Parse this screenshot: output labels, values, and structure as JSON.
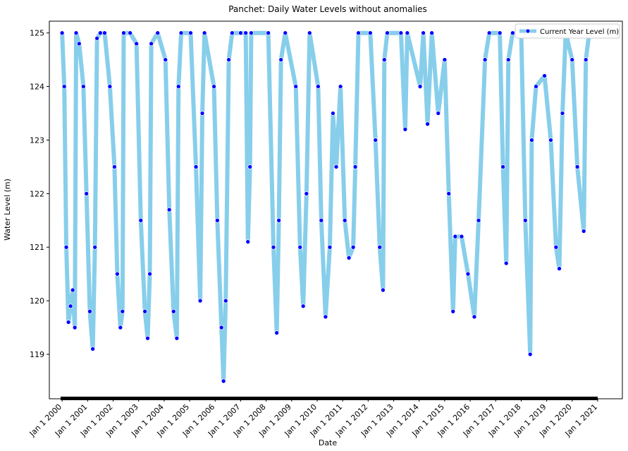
{
  "chart_data": {
    "type": "line",
    "title": "Panchet: Daily Water Levels without anomalies",
    "x_label": "Date",
    "y_label": "Water Level (m)",
    "legend": "upper right",
    "xlim": [
      "1999-07-02",
      "2021-12-20"
    ],
    "ylim": [
      118.17,
      125.22
    ],
    "yticks": [
      119,
      120,
      121,
      122,
      123,
      124,
      125
    ],
    "xticks": [
      {
        "value": "2000-01-01",
        "label": "Jan 1 2000"
      },
      {
        "value": "2001-01-01",
        "label": "Jan 1 2001"
      },
      {
        "value": "2002-01-01",
        "label": "Jan 1 2002"
      },
      {
        "value": "2003-01-01",
        "label": "Jan 1 2003"
      },
      {
        "value": "2004-01-01",
        "label": "Jan 1 2004"
      },
      {
        "value": "2005-01-01",
        "label": "Jan 1 2005"
      },
      {
        "value": "2006-01-01",
        "label": "Jan 1 2006"
      },
      {
        "value": "2007-01-01",
        "label": "Jan 1 2007"
      },
      {
        "value": "2008-01-01",
        "label": "Jan 1 2008"
      },
      {
        "value": "2009-01-01",
        "label": "Jan 1 2009"
      },
      {
        "value": "2010-01-01",
        "label": "Jan 1 2010"
      },
      {
        "value": "2011-01-01",
        "label": "Jan 1 2011"
      },
      {
        "value": "2012-01-01",
        "label": "Jan 1 2012"
      },
      {
        "value": "2013-01-01",
        "label": "Jan 1 2013"
      },
      {
        "value": "2014-01-01",
        "label": "Jan 1 2014"
      },
      {
        "value": "2015-01-01",
        "label": "Jan 1 2015"
      },
      {
        "value": "2016-01-01",
        "label": "Jan 1 2016"
      },
      {
        "value": "2017-01-01",
        "label": "Jan 1 2017"
      },
      {
        "value": "2018-01-01",
        "label": "Jan 1 2018"
      },
      {
        "value": "2019-01-01",
        "label": "Jan 1 2019"
      },
      {
        "value": "2020-01-01",
        "label": "Jan 1 2020"
      },
      {
        "value": "2021-01-01",
        "label": "Jan 1 2021"
      }
    ],
    "x": [
      "2000-01-01",
      "2000-02-01",
      "2000-03-01",
      "2000-04-01",
      "2000-05-01",
      "2000-06-01",
      "2000-07-01",
      "2000-07-20",
      "2000-09-01",
      "2000-11-01",
      "2000-12-15",
      "2001-02-01",
      "2001-03-15",
      "2001-04-15",
      "2001-05-15",
      "2001-07-01",
      "2001-09-01",
      "2001-11-15",
      "2002-01-20",
      "2002-03-01",
      "2002-04-15",
      "2002-05-15",
      "2002-06-01",
      "2002-09-01",
      "2002-12-01",
      "2003-02-01",
      "2003-04-01",
      "2003-05-10",
      "2003-06-10",
      "2003-07-01",
      "2003-10-01",
      "2004-01-20",
      "2004-03-15",
      "2004-05-15",
      "2004-07-01",
      "2004-07-25",
      "2004-09-01",
      "2005-01-15",
      "2005-04-01",
      "2005-06-01",
      "2005-07-01",
      "2005-08-01",
      "2005-12-15",
      "2006-02-01",
      "2006-04-01",
      "2006-05-01",
      "2006-06-01",
      "2006-07-15",
      "2006-09-01",
      "2007-01-01",
      "2007-03-15",
      "2007-04-15",
      "2007-05-15",
      "2007-06-01",
      "2008-02-01",
      "2008-04-15",
      "2008-06-01",
      "2008-07-01",
      "2008-08-01",
      "2008-10-01",
      "2009-03-01",
      "2009-05-01",
      "2009-06-15",
      "2009-08-01",
      "2009-09-15",
      "2010-01-15",
      "2010-03-01",
      "2010-05-01",
      "2010-07-01",
      "2010-08-15",
      "2010-10-01",
      "2010-12-01",
      "2011-02-01",
      "2011-04-01",
      "2011-06-01",
      "2011-07-01",
      "2011-08-15",
      "2012-02-01",
      "2012-04-15",
      "2012-06-15",
      "2012-08-01",
      "2012-08-20",
      "2012-10-01",
      "2013-04-15",
      "2013-06-15",
      "2013-07-15",
      "2014-01-15",
      "2014-03-01",
      "2014-05-01",
      "2014-07-01",
      "2014-10-01",
      "2015-01-01",
      "2015-03-01",
      "2015-05-01",
      "2015-06-01",
      "2015-09-01",
      "2015-12-01",
      "2016-03-01",
      "2016-05-01",
      "2016-08-01",
      "2016-10-01",
      "2017-03-01",
      "2017-04-15",
      "2017-06-01",
      "2017-07-01",
      "2017-09-01",
      "2018-01-01",
      "2018-03-01",
      "2018-05-10",
      "2018-06-01",
      "2018-08-01",
      "2018-12-01",
      "2019-03-01",
      "2019-05-15",
      "2019-07-01",
      "2019-08-15",
      "2019-10-01",
      "2020-01-01",
      "2020-03-15",
      "2020-06-15",
      "2020-07-15",
      "2020-09-01",
      "2020-12-31"
    ],
    "series": [
      {
        "name": "Current Year Level (m)",
        "color": "#87ceeb",
        "marker_color": "#0000ff",
        "values": [
          125,
          124,
          121,
          119.6,
          119.9,
          120.2,
          119.5,
          125,
          124.8,
          124,
          122,
          119.8,
          119.1,
          121,
          124.9,
          125,
          125,
          124,
          122.5,
          120.5,
          119.5,
          119.8,
          125,
          125,
          124.8,
          121.5,
          119.8,
          119.3,
          120.5,
          124.8,
          125,
          124.5,
          121.7,
          119.8,
          119.3,
          124,
          125,
          125,
          122.5,
          120,
          123.5,
          125,
          124,
          121.5,
          119.5,
          118.5,
          120,
          124.5,
          125,
          125,
          125,
          121.1,
          122.5,
          125,
          125,
          121,
          119.4,
          121.5,
          124.5,
          125,
          124,
          121,
          119.9,
          122,
          125,
          124,
          121.5,
          119.7,
          121,
          123.5,
          122.5,
          124,
          121.5,
          120.8,
          121,
          122.5,
          125,
          125,
          123,
          121,
          120.2,
          124.5,
          125,
          125,
          123.2,
          125,
          124,
          125,
          123.3,
          125,
          123.5,
          124.5,
          122,
          119.8,
          121.2,
          121.2,
          120.5,
          119.7,
          121.5,
          124.5,
          125,
          125,
          122.5,
          120.7,
          124.5,
          125,
          125,
          121.5,
          119,
          123,
          124,
          124.2,
          123,
          121,
          120.6,
          123.5,
          125,
          124.5,
          122.5,
          121.3,
          124.5,
          125,
          125
        ]
      }
    ]
  }
}
